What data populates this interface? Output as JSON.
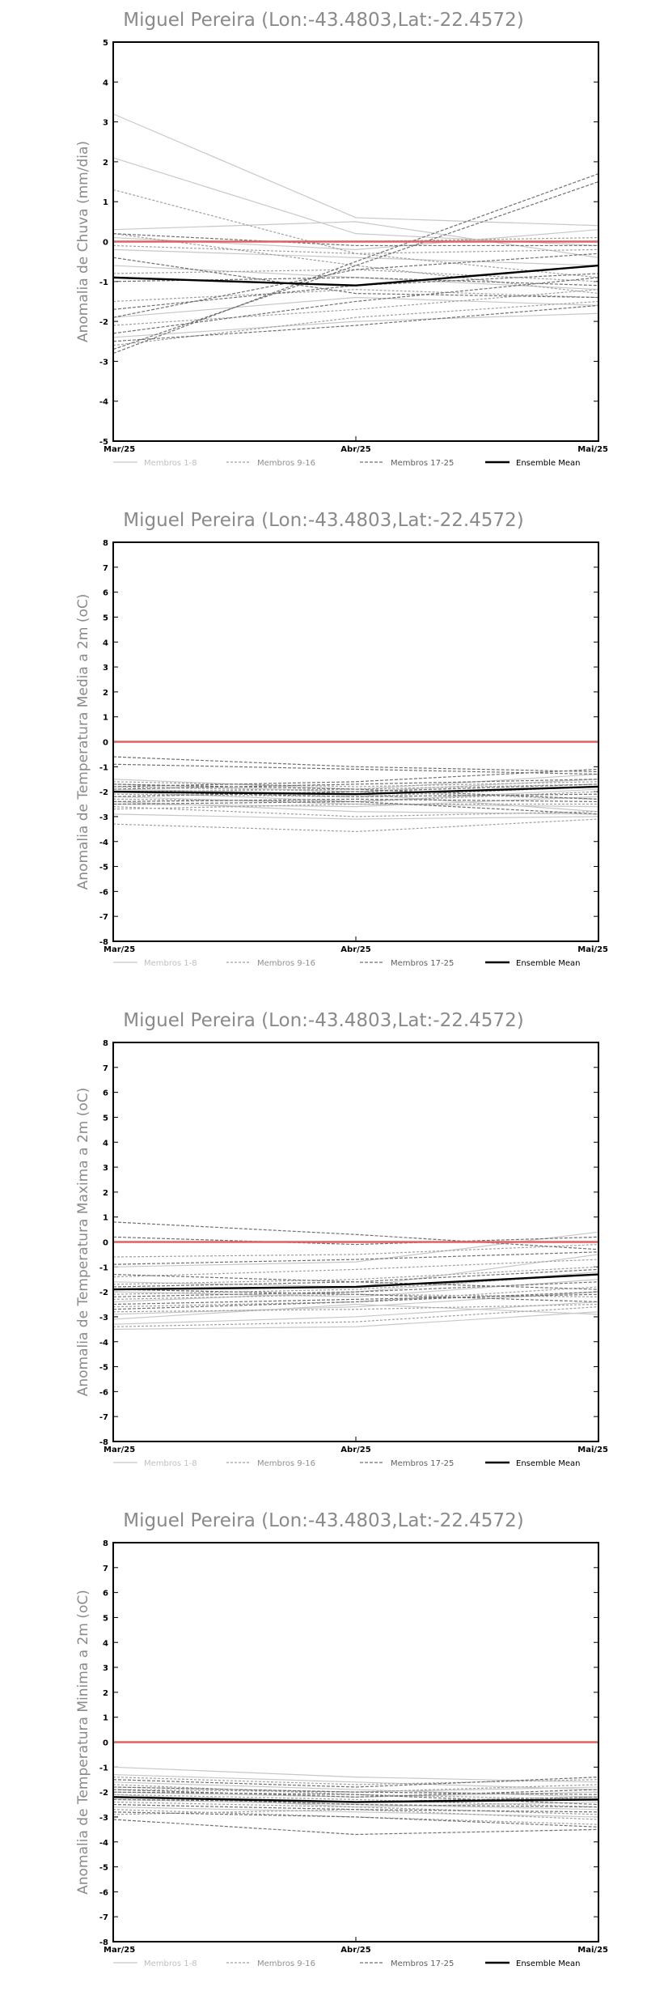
{
  "chart_data": [
    {
      "type": "line",
      "title": "Miguel Pereira (Lon:-43.4803,Lat:-22.4572)",
      "ylabel": "Anomalia de Chuva (mm/dia)",
      "xlabel": "",
      "categories": [
        "Mar/25",
        "Abr/25",
        "Mai/25"
      ],
      "ylim": [
        -5,
        5
      ],
      "yticks": [
        -5,
        -4,
        -3,
        -2,
        -1,
        0,
        1,
        2,
        3,
        4,
        5
      ],
      "legend": [
        "Membros 1-8",
        "Membros 9-16",
        "Membros 17-25",
        "Ensemble Mean"
      ],
      "legend_position": "bottom",
      "zero_line_color": "#e06060",
      "series": [
        {
          "group": 0,
          "values": [
            3.2,
            0.6,
            0.4
          ]
        },
        {
          "group": 0,
          "values": [
            2.1,
            0.2,
            -0.1
          ]
        },
        {
          "group": 0,
          "values": [
            0.3,
            0.5,
            -0.4
          ]
        },
        {
          "group": 0,
          "values": [
            -0.2,
            -0.4,
            -0.6
          ]
        },
        {
          "group": 0,
          "values": [
            -0.6,
            -0.9,
            -1.2
          ]
        },
        {
          "group": 0,
          "values": [
            -1.9,
            -1.4,
            -1.6
          ]
        },
        {
          "group": 0,
          "values": [
            -2.4,
            -2.0,
            -1.8
          ]
        },
        {
          "group": 0,
          "values": [
            0.1,
            -0.2,
            0.3
          ]
        },
        {
          "group": 1,
          "values": [
            1.3,
            -0.3,
            -0.9
          ]
        },
        {
          "group": 1,
          "values": [
            0.2,
            -0.6,
            -1.3
          ]
        },
        {
          "group": 1,
          "values": [
            -0.8,
            -0.7,
            -1.0
          ]
        },
        {
          "group": 1,
          "values": [
            -1.5,
            -1.2,
            -1.4
          ]
        },
        {
          "group": 1,
          "values": [
            -2.1,
            -1.7,
            -1.2
          ]
        },
        {
          "group": 1,
          "values": [
            -2.6,
            -1.9,
            -1.5
          ]
        },
        {
          "group": 1,
          "values": [
            -0.1,
            -0.3,
            -0.2
          ]
        },
        {
          "group": 1,
          "values": [
            0.0,
            0.0,
            0.1
          ]
        },
        {
          "group": 2,
          "values": [
            -2.8,
            -0.5,
            1.7
          ]
        },
        {
          "group": 2,
          "values": [
            -2.7,
            -0.6,
            1.5
          ]
        },
        {
          "group": 2,
          "values": [
            -1.9,
            -0.7,
            -0.3
          ]
        },
        {
          "group": 2,
          "values": [
            -1.7,
            -1.1,
            -0.8
          ]
        },
        {
          "group": 2,
          "values": [
            -2.3,
            -1.5,
            -0.9
          ]
        },
        {
          "group": 2,
          "values": [
            0.2,
            -0.1,
            -0.1
          ]
        },
        {
          "group": 2,
          "values": [
            -1.0,
            -0.9,
            -1.1
          ]
        },
        {
          "group": 2,
          "values": [
            -2.5,
            -2.1,
            -1.6
          ]
        },
        {
          "group": 2,
          "values": [
            -0.4,
            -1.3,
            -1.4
          ]
        },
        {
          "group": 3,
          "values": [
            -0.9,
            -1.1,
            -0.6
          ]
        }
      ]
    },
    {
      "type": "line",
      "title": "Miguel Pereira (Lon:-43.4803,Lat:-22.4572)",
      "ylabel": "Anomalia de Temperatura Media a 2m (oC)",
      "xlabel": "",
      "categories": [
        "Mar/25",
        "Abr/25",
        "Mai/25"
      ],
      "ylim": [
        -8,
        8
      ],
      "yticks": [
        -8,
        -7,
        -6,
        -5,
        -4,
        -3,
        -2,
        -1,
        0,
        1,
        2,
        3,
        4,
        5,
        6,
        7,
        8
      ],
      "legend": [
        "Membros 1-8",
        "Membros 9-16",
        "Membros 17-25",
        "Ensemble Mean"
      ],
      "legend_position": "bottom",
      "zero_line_color": "#e06060",
      "series": [
        {
          "group": 0,
          "values": [
            -2.9,
            -3.1,
            -3.0
          ]
        },
        {
          "group": 0,
          "values": [
            -2.0,
            -2.4,
            -1.9
          ]
        },
        {
          "group": 0,
          "values": [
            -1.7,
            -2.0,
            -1.5
          ]
        },
        {
          "group": 0,
          "values": [
            -2.5,
            -2.6,
            -2.2
          ]
        },
        {
          "group": 0,
          "values": [
            -1.9,
            -2.1,
            -2.8
          ]
        },
        {
          "group": 0,
          "values": [
            -2.2,
            -2.5,
            -2.6
          ]
        },
        {
          "group": 0,
          "values": [
            -1.5,
            -1.9,
            -1.3
          ]
        },
        {
          "group": 0,
          "values": [
            -2.4,
            -2.8,
            -2.9
          ]
        },
        {
          "group": 1,
          "values": [
            -3.3,
            -3.6,
            -3.1
          ]
        },
        {
          "group": 1,
          "values": [
            -2.6,
            -3.0,
            -2.8
          ]
        },
        {
          "group": 1,
          "values": [
            -2.1,
            -2.2,
            -1.8
          ]
        },
        {
          "group": 1,
          "values": [
            -1.8,
            -2.0,
            -2.3
          ]
        },
        {
          "group": 1,
          "values": [
            -2.3,
            -2.4,
            -2.0
          ]
        },
        {
          "group": 1,
          "values": [
            -1.6,
            -1.8,
            -1.6
          ]
        },
        {
          "group": 1,
          "values": [
            -2.7,
            -2.5,
            -2.5
          ]
        },
        {
          "group": 1,
          "values": [
            -2.0,
            -1.9,
            -1.7
          ]
        },
        {
          "group": 2,
          "values": [
            -0.6,
            -1.0,
            -1.2
          ]
        },
        {
          "group": 2,
          "values": [
            -0.9,
            -1.1,
            -1.3
          ]
        },
        {
          "group": 2,
          "values": [
            -1.9,
            -1.7,
            -1.5
          ]
        },
        {
          "group": 2,
          "values": [
            -2.2,
            -2.0,
            -1.7
          ]
        },
        {
          "group": 2,
          "values": [
            -2.4,
            -2.3,
            -2.4
          ]
        },
        {
          "group": 2,
          "values": [
            -2.0,
            -2.2,
            -2.1
          ]
        },
        {
          "group": 2,
          "values": [
            -1.7,
            -1.9,
            -2.3
          ]
        },
        {
          "group": 2,
          "values": [
            -2.5,
            -2.4,
            -2.9
          ]
        },
        {
          "group": 2,
          "values": [
            -1.8,
            -1.6,
            -1.1
          ]
        },
        {
          "group": 3,
          "values": [
            -2.0,
            -2.1,
            -1.8
          ]
        }
      ]
    },
    {
      "type": "line",
      "title": "Miguel Pereira (Lon:-43.4803,Lat:-22.4572)",
      "ylabel": "Anomalia de Temperatura Maxima a 2m (oC)",
      "xlabel": "",
      "categories": [
        "Mar/25",
        "Abr/25",
        "Mai/25"
      ],
      "ylim": [
        -8,
        8
      ],
      "yticks": [
        -8,
        -7,
        -6,
        -5,
        -4,
        -3,
        -2,
        -1,
        0,
        1,
        2,
        3,
        4,
        5,
        6,
        7,
        8
      ],
      "legend": [
        "Membros 1-8",
        "Membros 9-16",
        "Membros 17-25",
        "Ensemble Mean"
      ],
      "legend_position": "bottom",
      "zero_line_color": "#e06060",
      "series": [
        {
          "group": 0,
          "values": [
            -3.3,
            -3.0,
            -2.4
          ]
        },
        {
          "group": 0,
          "values": [
            -2.9,
            -2.6,
            -2.0
          ]
        },
        {
          "group": 0,
          "values": [
            -2.0,
            -2.2,
            -1.5
          ]
        },
        {
          "group": 0,
          "values": [
            -1.6,
            -1.8,
            -0.5
          ]
        },
        {
          "group": 0,
          "values": [
            -3.1,
            -2.5,
            -2.9
          ]
        },
        {
          "group": 0,
          "values": [
            -2.4,
            -2.0,
            -1.2
          ]
        },
        {
          "group": 0,
          "values": [
            -1.0,
            -0.8,
            0.4
          ]
        },
        {
          "group": 0,
          "values": [
            -3.5,
            -3.4,
            -2.8
          ]
        },
        {
          "group": 1,
          "values": [
            -3.4,
            -3.2,
            -2.6
          ]
        },
        {
          "group": 1,
          "values": [
            -2.6,
            -2.4,
            -1.8
          ]
        },
        {
          "group": 1,
          "values": [
            -2.1,
            -1.9,
            -1.3
          ]
        },
        {
          "group": 1,
          "values": [
            -1.7,
            -1.5,
            -1.0
          ]
        },
        {
          "group": 1,
          "values": [
            -2.3,
            -2.1,
            -2.2
          ]
        },
        {
          "group": 1,
          "values": [
            -1.4,
            -1.1,
            -0.7
          ]
        },
        {
          "group": 1,
          "values": [
            -2.8,
            -2.7,
            -2.5
          ]
        },
        {
          "group": 1,
          "values": [
            -0.6,
            -0.5,
            -0.1
          ]
        },
        {
          "group": 2,
          "values": [
            0.8,
            0.3,
            -0.3
          ]
        },
        {
          "group": 2,
          "values": [
            0.2,
            -0.1,
            0.2
          ]
        },
        {
          "group": 2,
          "values": [
            -0.9,
            -0.7,
            -0.4
          ]
        },
        {
          "group": 2,
          "values": [
            -1.8,
            -1.6,
            -1.1
          ]
        },
        {
          "group": 2,
          "values": [
            -2.2,
            -2.0,
            -1.6
          ]
        },
        {
          "group": 2,
          "values": [
            -1.3,
            -1.6,
            -1.9
          ]
        },
        {
          "group": 2,
          "values": [
            -2.5,
            -2.3,
            -2.1
          ]
        },
        {
          "group": 2,
          "values": [
            -1.9,
            -2.1,
            -2.4
          ]
        },
        {
          "group": 2,
          "values": [
            -2.7,
            -2.4,
            -2.0
          ]
        },
        {
          "group": 3,
          "values": [
            -1.9,
            -1.8,
            -1.3
          ]
        }
      ]
    },
    {
      "type": "line",
      "title": "Miguel Pereira (Lon:-43.4803,Lat:-22.4572)",
      "ylabel": "Anomalia de Temperatura Minima a 2m (oC)",
      "xlabel": "",
      "categories": [
        "Mar/25",
        "Abr/25",
        "Mai/25"
      ],
      "ylim": [
        -8,
        8
      ],
      "yticks": [
        -8,
        -7,
        -6,
        -5,
        -4,
        -3,
        -2,
        -1,
        0,
        1,
        2,
        3,
        4,
        5,
        6,
        7,
        8
      ],
      "legend": [
        "Membros 1-8",
        "Membros 9-16",
        "Membros 17-25",
        "Ensemble Mean"
      ],
      "legend_position": "bottom",
      "zero_line_color": "#e06060",
      "series": [
        {
          "group": 0,
          "values": [
            -1.0,
            -1.4,
            -1.6
          ]
        },
        {
          "group": 0,
          "values": [
            -1.3,
            -1.6,
            -1.9
          ]
        },
        {
          "group": 0,
          "values": [
            -1.6,
            -1.9,
            -2.2
          ]
        },
        {
          "group": 0,
          "values": [
            -2.0,
            -2.2,
            -2.0
          ]
        },
        {
          "group": 0,
          "values": [
            -2.3,
            -2.5,
            -2.7
          ]
        },
        {
          "group": 0,
          "values": [
            -2.6,
            -2.8,
            -3.0
          ]
        },
        {
          "group": 0,
          "values": [
            -1.8,
            -2.0,
            -1.8
          ]
        },
        {
          "group": 0,
          "values": [
            -2.1,
            -2.6,
            -2.4
          ]
        },
        {
          "group": 1,
          "values": [
            -1.4,
            -1.7,
            -1.5
          ]
        },
        {
          "group": 1,
          "values": [
            -1.7,
            -2.1,
            -2.3
          ]
        },
        {
          "group": 1,
          "values": [
            -2.1,
            -2.3,
            -2.6
          ]
        },
        {
          "group": 1,
          "values": [
            -2.4,
            -2.6,
            -2.9
          ]
        },
        {
          "group": 1,
          "values": [
            -2.7,
            -3.0,
            -3.3
          ]
        },
        {
          "group": 1,
          "values": [
            -1.9,
            -2.0,
            -1.7
          ]
        },
        {
          "group": 1,
          "values": [
            -2.2,
            -2.4,
            -2.2
          ]
        },
        {
          "group": 1,
          "values": [
            -2.9,
            -2.7,
            -3.1
          ]
        },
        {
          "group": 2,
          "values": [
            -3.1,
            -3.7,
            -3.5
          ]
        },
        {
          "group": 2,
          "values": [
            -1.5,
            -1.8,
            -1.4
          ]
        },
        {
          "group": 2,
          "values": [
            -1.8,
            -2.0,
            -2.1
          ]
        },
        {
          "group": 2,
          "values": [
            -2.0,
            -2.1,
            -2.5
          ]
        },
        {
          "group": 2,
          "values": [
            -2.3,
            -2.4,
            -2.2
          ]
        },
        {
          "group": 2,
          "values": [
            -2.5,
            -2.7,
            -2.8
          ]
        },
        {
          "group": 2,
          "values": [
            -2.8,
            -3.0,
            -3.4
          ]
        },
        {
          "group": 2,
          "values": [
            -2.2,
            -2.5,
            -2.6
          ]
        },
        {
          "group": 2,
          "values": [
            -1.9,
            -2.2,
            -1.9
          ]
        },
        {
          "group": 3,
          "values": [
            -2.2,
            -2.4,
            -2.3
          ]
        }
      ]
    }
  ]
}
